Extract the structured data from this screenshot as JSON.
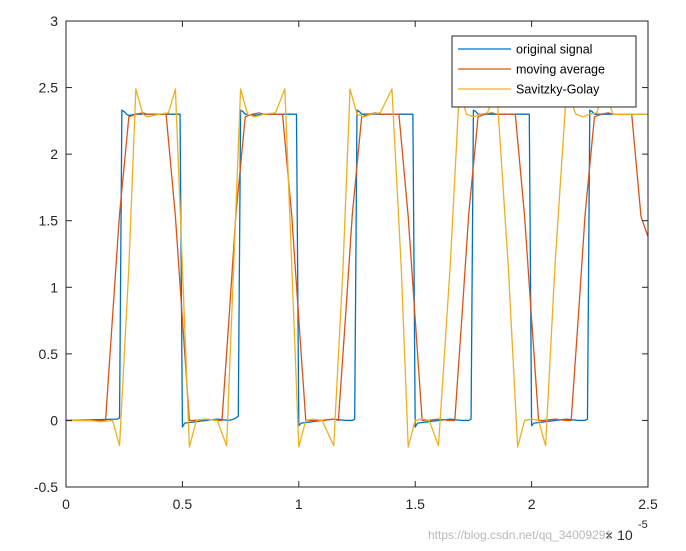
{
  "chart_data": {
    "type": "line",
    "title": "",
    "xlabel": "",
    "ylabel": "",
    "xlim": [
      0,
      2.5
    ],
    "ylim": [
      -0.5,
      3
    ],
    "x_ticks": [
      "0",
      "0.5",
      "1",
      "1.5",
      "2",
      "2.5"
    ],
    "y_ticks": [
      "-0.5",
      "0",
      "0.5",
      "1",
      "1.5",
      "2",
      "2.5",
      "3"
    ],
    "x_exponent": {
      "base": "× 10",
      "power": "-5"
    },
    "grid": false,
    "box": true,
    "legend_position": "top-right",
    "series": [
      {
        "name": "original signal",
        "color": "#0072BD",
        "x": [
          0,
          0.22,
          0.23,
          0.24,
          0.25,
          0.26,
          0.27,
          0.3,
          0.35,
          0.4,
          0.45,
          0.48,
          0.49,
          0.5,
          0.51,
          0.6,
          0.65,
          0.7,
          0.72,
          0.73,
          0.74,
          0.75,
          0.76,
          0.77,
          0.8,
          0.85,
          0.9,
          0.95,
          0.98,
          0.99,
          1.0,
          1.01,
          1.1,
          1.15,
          1.2,
          1.22,
          1.23,
          1.24,
          1.25,
          1.26,
          1.27,
          1.3,
          1.35,
          1.4,
          1.45,
          1.48,
          1.49,
          1.5,
          1.51,
          1.6,
          1.65,
          1.7,
          1.72,
          1.73,
          1.74,
          1.75,
          1.76,
          1.77,
          1.8,
          1.85,
          1.9,
          1.95,
          1.98,
          1.99,
          2.0,
          2.01,
          2.1,
          2.15,
          2.2,
          2.22,
          2.23,
          2.24,
          2.25,
          2.26,
          2.27,
          2.3,
          2.35,
          2.4,
          2.45,
          2.5
        ],
        "y": [
          0,
          0.01,
          0.02,
          2.33,
          2.32,
          2.3,
          2.29,
          2.3,
          2.3,
          2.3,
          2.3,
          2.3,
          2.3,
          -0.05,
          -0.02,
          0.0,
          0.01,
          0.0,
          0.01,
          0.02,
          0.03,
          2.33,
          2.32,
          2.3,
          2.29,
          2.3,
          2.3,
          2.3,
          2.3,
          2.3,
          -0.04,
          -0.02,
          0.0,
          0.01,
          0.0,
          0.0,
          0.0,
          0.01,
          2.33,
          2.32,
          2.3,
          2.3,
          2.3,
          2.3,
          2.3,
          2.3,
          2.3,
          -0.05,
          -0.02,
          0.0,
          0.01,
          0.0,
          0.0,
          0.0,
          0.01,
          2.33,
          2.32,
          2.3,
          2.3,
          2.3,
          2.3,
          2.3,
          2.3,
          2.3,
          -0.04,
          -0.02,
          0.0,
          0.01,
          0.0,
          0.0,
          0.0,
          0.01,
          2.33,
          2.32,
          2.3,
          2.3,
          2.3,
          2.3,
          2.3,
          2.3
        ]
      },
      {
        "name": "moving average",
        "color": "#D95319",
        "x": [
          0,
          0.1,
          0.17,
          0.2,
          0.23,
          0.27,
          0.3,
          0.33,
          0.35,
          0.4,
          0.43,
          0.47,
          0.5,
          0.53,
          0.55,
          0.6,
          0.65,
          0.67,
          0.7,
          0.73,
          0.77,
          0.8,
          0.83,
          0.85,
          0.9,
          0.93,
          0.97,
          1.0,
          1.03,
          1.05,
          1.1,
          1.15,
          1.17,
          1.2,
          1.23,
          1.27,
          1.3,
          1.33,
          1.35,
          1.4,
          1.43,
          1.47,
          1.5,
          1.53,
          1.55,
          1.6,
          1.65,
          1.67,
          1.7,
          1.73,
          1.77,
          1.8,
          1.83,
          1.85,
          1.9,
          1.93,
          1.97,
          2.0,
          2.03,
          2.05,
          2.1,
          2.15,
          2.17,
          2.2,
          2.23,
          2.27,
          2.3,
          2.33,
          2.35,
          2.4,
          2.43,
          2.47,
          2.5
        ],
        "y": [
          0,
          0.0,
          0.0,
          0.78,
          1.55,
          2.28,
          2.3,
          2.31,
          2.3,
          2.3,
          2.3,
          1.53,
          0.76,
          0.0,
          0.0,
          0.01,
          0.0,
          0.0,
          0.76,
          1.55,
          2.28,
          2.3,
          2.31,
          2.3,
          2.3,
          2.3,
          1.53,
          0.76,
          0.0,
          0.0,
          0.0,
          0.01,
          0.0,
          0.76,
          1.55,
          2.28,
          2.3,
          2.31,
          2.3,
          2.3,
          2.3,
          1.53,
          0.76,
          0.0,
          0.0,
          0.01,
          0.0,
          0.0,
          0.76,
          1.55,
          2.28,
          2.3,
          2.31,
          2.3,
          2.3,
          2.3,
          1.53,
          0.76,
          0.0,
          0.0,
          0.01,
          0.0,
          0.0,
          0.76,
          1.55,
          2.28,
          2.3,
          2.31,
          2.3,
          2.3,
          2.3,
          1.53,
          1.38
        ]
      },
      {
        "name": "Savitzky-Golay",
        "color": "#EDB120",
        "x": [
          0,
          0.1,
          0.15,
          0.2,
          0.23,
          0.27,
          0.3,
          0.33,
          0.35,
          0.4,
          0.44,
          0.47,
          0.5,
          0.53,
          0.56,
          0.6,
          0.65,
          0.69,
          0.72,
          0.75,
          0.78,
          0.81,
          0.85,
          0.9,
          0.94,
          0.97,
          1.0,
          1.03,
          1.06,
          1.1,
          1.15,
          1.19,
          1.22,
          1.25,
          1.28,
          1.31,
          1.35,
          1.4,
          1.44,
          1.47,
          1.5,
          1.53,
          1.56,
          1.6,
          1.65,
          1.69,
          1.72,
          1.75,
          1.78,
          1.81,
          1.85,
          1.9,
          1.94,
          1.97,
          2.0,
          2.03,
          2.06,
          2.1,
          2.15,
          2.19,
          2.22,
          2.25,
          2.28,
          2.31,
          2.35,
          2.4,
          2.44,
          2.47,
          2.5
        ],
        "y": [
          0,
          0.0,
          -0.01,
          0.0,
          -0.19,
          1.15,
          2.49,
          2.3,
          2.28,
          2.3,
          2.31,
          2.49,
          1.15,
          -0.2,
          0.0,
          0.01,
          0.0,
          -0.19,
          1.15,
          2.49,
          2.3,
          2.28,
          2.3,
          2.31,
          2.49,
          1.15,
          -0.2,
          0.0,
          0.01,
          0.0,
          -0.19,
          1.15,
          2.49,
          2.3,
          2.28,
          2.3,
          2.31,
          2.49,
          1.15,
          -0.2,
          0.0,
          0.01,
          0.0,
          -0.19,
          1.15,
          2.49,
          2.3,
          2.28,
          2.3,
          2.31,
          2.49,
          1.15,
          -0.2,
          0.0,
          0.01,
          0.0,
          -0.19,
          1.15,
          2.49,
          2.3,
          2.28,
          2.3,
          2.31,
          2.49,
          2.3,
          2.3,
          2.3,
          2.3,
          2.3
        ]
      }
    ]
  },
  "watermark": "https://blog.csdn.net/qq_34009291"
}
